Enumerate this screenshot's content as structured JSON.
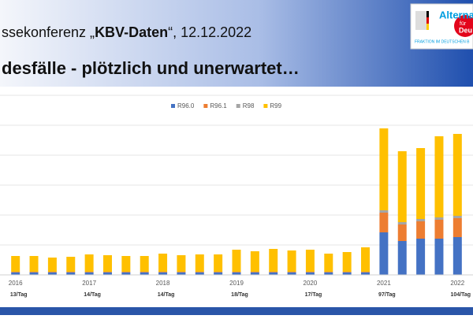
{
  "header": {
    "line1_pre": "ssekonferenz „",
    "line1_bold": "KBV-Daten",
    "line1_post": "“, 12.12.2022",
    "line2": "desfälle - plötzlich und unerwartet…"
  },
  "logo": {
    "name": "Alterna",
    "sub": "für",
    "sub2": "Deu",
    "caption": "FRAKTION IM DEUTSCHEN B"
  },
  "chart_data": {
    "type": "stacked_bar",
    "categories": [
      "2016",
      null,
      null,
      null,
      "2017",
      null,
      null,
      null,
      "2018",
      null,
      null,
      null,
      "2019",
      null,
      null,
      null,
      "2020",
      null,
      null,
      null,
      "2021",
      null,
      null,
      null,
      "2022"
    ],
    "category_notes": [
      "13/Tag",
      null,
      null,
      null,
      "14/Tag",
      null,
      null,
      null,
      "14/Tag",
      null,
      null,
      null,
      "18/Tag",
      null,
      null,
      null,
      "17/Tag",
      null,
      null,
      null,
      "97/Tag",
      null,
      null,
      null,
      "104/Tag"
    ],
    "series": [
      {
        "name": "R96.0",
        "color": "#4472c4",
        "values": [
          3,
          3,
          3,
          3,
          3,
          3,
          3,
          3,
          3,
          3,
          3,
          3,
          3,
          3,
          3,
          3,
          3,
          3,
          3,
          3,
          54,
          43,
          46,
          46,
          48
        ]
      },
      {
        "name": "R96.1",
        "color": "#ed7d31",
        "values": [
          0.5,
          0.5,
          0.5,
          0.5,
          0.5,
          0.5,
          0.5,
          0.5,
          0.5,
          0.5,
          0.5,
          0.5,
          0.5,
          0.5,
          0.5,
          0.5,
          0.5,
          0.5,
          0.5,
          0.5,
          25,
          21,
          22,
          24,
          24
        ]
      },
      {
        "name": "R98",
        "color": "#a5a5a5",
        "values": [
          0.5,
          0.5,
          0.5,
          0.5,
          0.5,
          0.5,
          0.5,
          0.5,
          0.5,
          0.5,
          0.5,
          0.5,
          0.5,
          0.5,
          0.5,
          0.5,
          0.5,
          0.5,
          0.5,
          0.5,
          3,
          3,
          3,
          3,
          3
        ]
      },
      {
        "name": "R99",
        "color": "#ffc000",
        "values": [
          20,
          20,
          18,
          19,
          22,
          21,
          20,
          20,
          23,
          21,
          22,
          22,
          28,
          26,
          29,
          27,
          28,
          23,
          25,
          31,
          104,
          90,
          90,
          103,
          104
        ]
      }
    ],
    "ylim": [
      0,
      228
    ],
    "yticks": [
      0,
      38,
      76,
      114,
      152,
      190,
      228
    ],
    "grid": true
  }
}
